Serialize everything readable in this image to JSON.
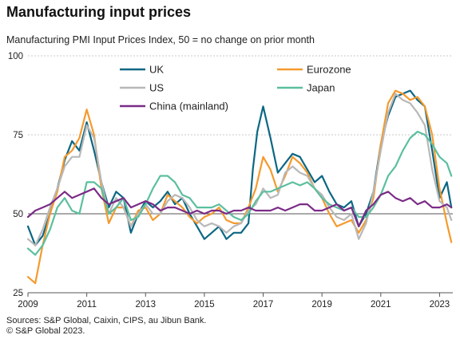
{
  "title": "Manufacturing input prices",
  "subtitle": "Manufacturing PMI Input Prices Index, 50 =  no change on prior month",
  "footer": {
    "sources": "Sources: S&P Global, Caixin, CIPS, au Jibun Bank.",
    "copyright": "© S&P Global 2023."
  },
  "chart_data": {
    "type": "line",
    "title": "",
    "xlabel": "",
    "ylabel": "",
    "xlim": [
      2009.0,
      2023.45
    ],
    "ylim": [
      25,
      100
    ],
    "x_ticks": [
      2009,
      2011,
      2013,
      2015,
      2017,
      2019,
      2021,
      2023
    ],
    "y_ticks": [
      25,
      50,
      75,
      100
    ],
    "baseline": 50,
    "grid": "horizontal dotted",
    "legend": "top, two columns",
    "series": [
      {
        "name": "UK",
        "color": "#0b6783",
        "x": [
          2009.0,
          2009.25,
          2009.5,
          2009.75,
          2010.0,
          2010.25,
          2010.5,
          2010.75,
          2011.0,
          2011.25,
          2011.5,
          2011.75,
          2012.0,
          2012.25,
          2012.5,
          2012.75,
          2013.0,
          2013.25,
          2013.5,
          2013.75,
          2014.0,
          2014.25,
          2014.5,
          2014.75,
          2015.0,
          2015.25,
          2015.5,
          2015.75,
          2016.0,
          2016.25,
          2016.5,
          2016.65,
          2016.8,
          2017.0,
          2017.25,
          2017.5,
          2017.75,
          2018.0,
          2018.25,
          2018.5,
          2018.75,
          2019.0,
          2019.25,
          2019.5,
          2019.75,
          2020.0,
          2020.25,
          2020.5,
          2020.75,
          2021.0,
          2021.25,
          2021.5,
          2021.75,
          2022.0,
          2022.25,
          2022.5,
          2022.75,
          2023.0,
          2023.25,
          2023.4
        ],
        "values": [
          46,
          40,
          43,
          50,
          58,
          67,
          73,
          70,
          79,
          70,
          60,
          52,
          57,
          55,
          44,
          50,
          54,
          52,
          54,
          57,
          53,
          55,
          50,
          46,
          42,
          44,
          46,
          42,
          44,
          44,
          47,
          64,
          76,
          84,
          74,
          63,
          66,
          69,
          68,
          64,
          60,
          62,
          57,
          53,
          52,
          54,
          46,
          50,
          57,
          72,
          81,
          87,
          88,
          89,
          86,
          84,
          70,
          55,
          60,
          52
        ]
      },
      {
        "name": "Eurozone",
        "color": "#f59a2e",
        "x": [
          2009.0,
          2009.25,
          2009.5,
          2009.75,
          2010.0,
          2010.25,
          2010.5,
          2010.75,
          2011.0,
          2011.25,
          2011.5,
          2011.75,
          2012.0,
          2012.25,
          2012.5,
          2012.75,
          2013.0,
          2013.25,
          2013.5,
          2013.75,
          2014.0,
          2014.25,
          2014.5,
          2014.75,
          2015.0,
          2015.25,
          2015.5,
          2015.75,
          2016.0,
          2016.25,
          2016.5,
          2016.75,
          2017.0,
          2017.25,
          2017.5,
          2017.75,
          2018.0,
          2018.25,
          2018.5,
          2018.75,
          2019.0,
          2019.25,
          2019.5,
          2019.75,
          2020.0,
          2020.25,
          2020.5,
          2020.75,
          2021.0,
          2021.25,
          2021.5,
          2021.75,
          2022.0,
          2022.25,
          2022.5,
          2022.75,
          2023.0,
          2023.25,
          2023.4
        ],
        "values": [
          30,
          28,
          40,
          50,
          57,
          68,
          70,
          74,
          83,
          75,
          58,
          47,
          52,
          52,
          46,
          51,
          52,
          48,
          50,
          56,
          54,
          52,
          49,
          47,
          49,
          50,
          52,
          48,
          47,
          47,
          52,
          58,
          68,
          64,
          57,
          62,
          68,
          66,
          63,
          58,
          55,
          50,
          46,
          47,
          48,
          44,
          48,
          55,
          72,
          85,
          89,
          88,
          86,
          87,
          84,
          75,
          58,
          47,
          41
        ]
      },
      {
        "name": "US",
        "color": "#b8b8b8",
        "x": [
          2009.0,
          2009.25,
          2009.5,
          2009.75,
          2010.0,
          2010.25,
          2010.5,
          2010.75,
          2011.0,
          2011.25,
          2011.5,
          2011.75,
          2012.0,
          2012.25,
          2012.5,
          2012.75,
          2013.0,
          2013.25,
          2013.5,
          2013.75,
          2014.0,
          2014.25,
          2014.5,
          2014.75,
          2015.0,
          2015.25,
          2015.5,
          2015.75,
          2016.0,
          2016.25,
          2016.5,
          2016.75,
          2017.0,
          2017.25,
          2017.5,
          2017.75,
          2018.0,
          2018.25,
          2018.5,
          2018.75,
          2019.0,
          2019.25,
          2019.5,
          2019.75,
          2020.0,
          2020.25,
          2020.5,
          2020.75,
          2021.0,
          2021.25,
          2021.5,
          2021.75,
          2022.0,
          2022.25,
          2022.5,
          2022.75,
          2023.0,
          2023.25,
          2023.4
        ],
        "values": [
          42,
          40,
          45,
          52,
          58,
          65,
          68,
          68,
          78,
          74,
          60,
          50,
          55,
          52,
          46,
          50,
          53,
          50,
          50,
          54,
          56,
          55,
          52,
          48,
          46,
          47,
          46,
          44,
          46,
          47,
          51,
          53,
          58,
          55,
          56,
          63,
          65,
          63,
          62,
          58,
          56,
          52,
          49,
          48,
          50,
          42,
          47,
          57,
          70,
          82,
          88,
          86,
          85,
          82,
          78,
          64,
          54,
          52,
          48
        ]
      },
      {
        "name": "Japan",
        "color": "#5bbf9f",
        "x": [
          2009.0,
          2009.25,
          2009.5,
          2009.75,
          2010.0,
          2010.25,
          2010.5,
          2010.75,
          2011.0,
          2011.25,
          2011.5,
          2011.75,
          2012.0,
          2012.25,
          2012.5,
          2012.75,
          2013.0,
          2013.25,
          2013.5,
          2013.75,
          2014.0,
          2014.25,
          2014.5,
          2014.75,
          2015.0,
          2015.25,
          2015.5,
          2015.75,
          2016.0,
          2016.25,
          2016.5,
          2016.75,
          2017.0,
          2017.25,
          2017.5,
          2017.75,
          2018.0,
          2018.25,
          2018.5,
          2018.75,
          2019.0,
          2019.25,
          2019.5,
          2019.75,
          2020.0,
          2020.25,
          2020.5,
          2020.75,
          2021.0,
          2021.25,
          2021.5,
          2021.75,
          2022.0,
          2022.25,
          2022.5,
          2022.75,
          2023.0,
          2023.25,
          2023.4
        ],
        "values": [
          39,
          37,
          40,
          45,
          52,
          55,
          51,
          50,
          60,
          60,
          58,
          50,
          52,
          55,
          48,
          49,
          53,
          58,
          62,
          62,
          60,
          56,
          55,
          52,
          52,
          52,
          53,
          51,
          49,
          48,
          50,
          54,
          57,
          57,
          58,
          59,
          60,
          59,
          60,
          58,
          55,
          53,
          52,
          51,
          52,
          49,
          49,
          52,
          56,
          62,
          65,
          70,
          74,
          76,
          75,
          72,
          68,
          66,
          62
        ]
      },
      {
        "name": "China (mainland)",
        "color": "#7b2c87",
        "x": [
          2009.0,
          2009.25,
          2009.5,
          2009.75,
          2010.0,
          2010.25,
          2010.5,
          2010.75,
          2011.0,
          2011.25,
          2011.5,
          2011.75,
          2012.0,
          2012.25,
          2012.5,
          2012.75,
          2013.0,
          2013.25,
          2013.5,
          2013.75,
          2014.0,
          2014.25,
          2014.5,
          2014.75,
          2015.0,
          2015.25,
          2015.5,
          2015.75,
          2016.0,
          2016.25,
          2016.5,
          2016.75,
          2017.0,
          2017.25,
          2017.5,
          2017.75,
          2018.0,
          2018.25,
          2018.5,
          2018.75,
          2019.0,
          2019.25,
          2019.5,
          2019.75,
          2020.0,
          2020.25,
          2020.5,
          2020.75,
          2021.0,
          2021.25,
          2021.5,
          2021.75,
          2022.0,
          2022.25,
          2022.5,
          2022.75,
          2023.0,
          2023.25,
          2023.4
        ],
        "values": [
          49,
          51,
          52,
          53,
          55,
          57,
          55,
          56,
          57,
          58,
          55,
          53,
          54,
          55,
          52,
          53,
          54,
          53,
          51,
          52,
          52,
          51,
          50,
          51,
          50,
          51,
          51,
          50,
          51,
          51,
          52,
          51,
          51,
          51,
          52,
          51,
          52,
          53,
          53,
          51,
          51,
          52,
          53,
          51,
          52,
          46,
          51,
          53,
          56,
          57,
          55,
          54,
          55,
          53,
          54,
          52,
          52,
          53,
          52
        ]
      }
    ]
  }
}
